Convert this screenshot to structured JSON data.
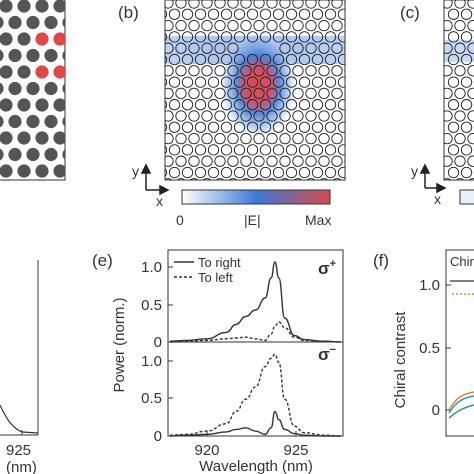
{
  "panels": {
    "b": {
      "label": "(b)",
      "axes": {
        "y": "y",
        "x": "x"
      },
      "colorbar": {
        "min": "0",
        "mid": "|E|",
        "max": "Max",
        "colors": [
          "#ffffff",
          "#3b7ad8",
          "#d94a4a"
        ]
      }
    },
    "c": {
      "label": "(c)",
      "axes": {
        "y": "y",
        "x": "x"
      }
    },
    "d": {
      "tick": "925",
      "xlabel_fragment": "(nm)"
    },
    "e": {
      "label": "(e)",
      "ylabel": "Power (norm.)",
      "xlabel": "Wavelength (nm)",
      "top_sigma": "σ",
      "top_sup": "+",
      "bottom_sigma": "σ",
      "bottom_sup": "−",
      "legend": [
        "To right",
        "To left"
      ],
      "yticks": [
        "1.0",
        "0.5",
        "0"
      ],
      "xticks": [
        "920",
        "925"
      ]
    },
    "f": {
      "label": "(f)",
      "ylabel": "Chiral contrast",
      "legend_fragment": "Chir",
      "yticks": [
        "1.0",
        "0.5",
        "0"
      ]
    }
  },
  "chart_data": [
    {
      "panel": "e-top",
      "type": "line",
      "title": "",
      "xlabel": "Wavelength (nm)",
      "ylabel": "Power (norm.)",
      "xlim": [
        917.5,
        926.5
      ],
      "ylim": [
        0,
        1.15
      ],
      "x": [
        917.6,
        918.5,
        919.5,
        920.5,
        921.0,
        921.5,
        922.0,
        922.5,
        922.8,
        923.0,
        923.2,
        923.5,
        924.0,
        924.5,
        925.5,
        926.4
      ],
      "series": [
        {
          "name": "To right",
          "style": "solid",
          "values": [
            0.01,
            0.02,
            0.04,
            0.12,
            0.22,
            0.32,
            0.4,
            0.55,
            0.8,
            1.0,
            0.8,
            0.3,
            0.08,
            0.03,
            0.01,
            0.0
          ]
        },
        {
          "name": "To left",
          "style": "dashed",
          "values": [
            0.0,
            0.01,
            0.02,
            0.04,
            0.05,
            0.06,
            0.04,
            0.02,
            0.1,
            0.2,
            0.25,
            0.18,
            0.06,
            0.02,
            0.01,
            0.0
          ]
        }
      ]
    },
    {
      "panel": "e-bottom",
      "type": "line",
      "title": "",
      "xlabel": "Wavelength (nm)",
      "ylabel": "Power (norm.)",
      "xlim": [
        917.5,
        926.5
      ],
      "ylim": [
        0,
        1.15
      ],
      "x": [
        917.6,
        918.5,
        919.5,
        920.5,
        921.0,
        921.5,
        922.0,
        922.5,
        922.8,
        923.0,
        923.2,
        923.5,
        924.0,
        924.5,
        925.5,
        926.4
      ],
      "series": [
        {
          "name": "To right",
          "style": "solid",
          "values": [
            0.0,
            0.01,
            0.02,
            0.05,
            0.08,
            0.1,
            0.06,
            0.02,
            0.1,
            0.3,
            0.2,
            0.08,
            0.03,
            0.01,
            0.0,
            0.0
          ]
        },
        {
          "name": "To left",
          "style": "dashed",
          "values": [
            0.01,
            0.02,
            0.06,
            0.15,
            0.3,
            0.45,
            0.6,
            0.85,
            0.95,
            1.0,
            0.9,
            0.45,
            0.12,
            0.04,
            0.01,
            0.0
          ]
        }
      ]
    }
  ]
}
